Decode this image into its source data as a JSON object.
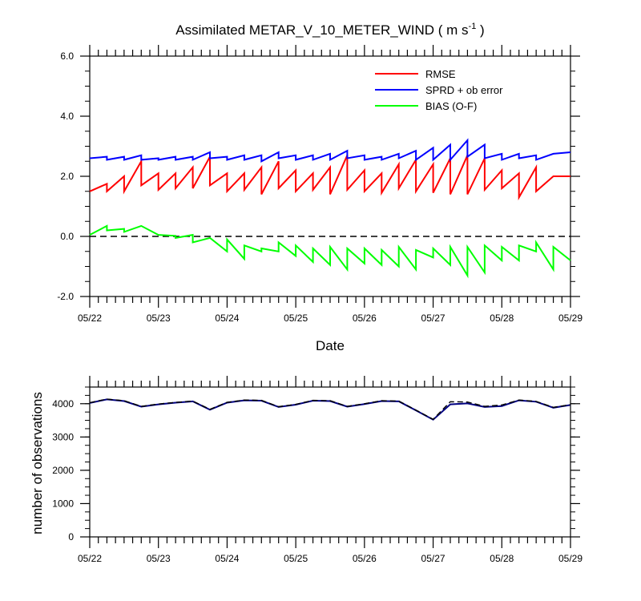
{
  "chart_data": [
    {
      "type": "line",
      "title_main": "Assimilated METAR_V_10_METER_WIND ( m s",
      "title_sup": "-1",
      "title_end": " )",
      "xlabel": "Date",
      "ylabel": "",
      "ylim": [
        -2.0,
        6.0
      ],
      "yticks": [
        "6.0",
        "4.0",
        "2.0",
        "0.0",
        "-2.0"
      ],
      "yticks_values": [
        6.0,
        4.0,
        2.0,
        0.0,
        -2.0
      ],
      "x_tick_labels": [
        "05/22",
        "05/23",
        "05/24",
        "05/25",
        "05/26",
        "05/27",
        "05/28",
        "05/29"
      ],
      "xlim_days": [
        0,
        7
      ],
      "zero_line": true,
      "legend_position": "top-right",
      "series": [
        {
          "name": "RMSE",
          "color": "#ff0000",
          "points": [
            [
              0,
              1.5
            ],
            [
              0.25,
              1.75
            ],
            [
              0.25,
              1.5
            ],
            [
              0.5,
              2.0
            ],
            [
              0.5,
              1.5
            ],
            [
              0.75,
              2.5
            ],
            [
              0.75,
              1.7
            ],
            [
              1,
              2.1
            ],
            [
              1,
              1.55
            ],
            [
              1.25,
              2.1
            ],
            [
              1.25,
              1.6
            ],
            [
              1.5,
              2.3
            ],
            [
              1.5,
              1.6
            ],
            [
              1.75,
              2.65
            ],
            [
              1.75,
              1.7
            ],
            [
              2,
              2.1
            ],
            [
              2,
              1.5
            ],
            [
              2.25,
              2.1
            ],
            [
              2.25,
              1.55
            ],
            [
              2.5,
              2.3
            ],
            [
              2.5,
              1.4
            ],
            [
              2.75,
              2.5
            ],
            [
              2.75,
              1.6
            ],
            [
              3,
              2.2
            ],
            [
              3,
              1.5
            ],
            [
              3.25,
              2.1
            ],
            [
              3.25,
              1.55
            ],
            [
              3.5,
              2.3
            ],
            [
              3.5,
              1.4
            ],
            [
              3.75,
              2.7
            ],
            [
              3.75,
              1.55
            ],
            [
              4,
              2.2
            ],
            [
              4,
              1.5
            ],
            [
              4.25,
              2.1
            ],
            [
              4.25,
              1.45
            ],
            [
              4.5,
              2.4
            ],
            [
              4.5,
              1.6
            ],
            [
              4.75,
              2.55
            ],
            [
              4.75,
              1.5
            ],
            [
              5,
              2.4
            ],
            [
              5,
              1.45
            ],
            [
              5.25,
              2.6
            ],
            [
              5.25,
              1.4
            ],
            [
              5.5,
              2.7
            ],
            [
              5.5,
              1.4
            ],
            [
              5.75,
              2.6
            ],
            [
              5.75,
              1.55
            ],
            [
              6,
              2.2
            ],
            [
              6,
              1.6
            ],
            [
              6.25,
              2.1
            ],
            [
              6.25,
              1.3
            ],
            [
              6.5,
              2.3
            ],
            [
              6.5,
              1.5
            ],
            [
              6.75,
              2.0
            ],
            [
              7,
              2.0
            ]
          ]
        },
        {
          "name": "SPRD + ob error",
          "color": "#0000ff",
          "points": [
            [
              0,
              2.6
            ],
            [
              0.25,
              2.65
            ],
            [
              0.25,
              2.55
            ],
            [
              0.5,
              2.65
            ],
            [
              0.5,
              2.55
            ],
            [
              0.75,
              2.7
            ],
            [
              0.75,
              2.55
            ],
            [
              1,
              2.6
            ],
            [
              1,
              2.55
            ],
            [
              1.25,
              2.65
            ],
            [
              1.25,
              2.55
            ],
            [
              1.5,
              2.65
            ],
            [
              1.5,
              2.55
            ],
            [
              1.75,
              2.8
            ],
            [
              1.75,
              2.6
            ],
            [
              2,
              2.65
            ],
            [
              2,
              2.55
            ],
            [
              2.25,
              2.7
            ],
            [
              2.25,
              2.55
            ],
            [
              2.5,
              2.7
            ],
            [
              2.5,
              2.5
            ],
            [
              2.75,
              2.8
            ],
            [
              2.75,
              2.6
            ],
            [
              3,
              2.7
            ],
            [
              3,
              2.55
            ],
            [
              3.25,
              2.7
            ],
            [
              3.25,
              2.55
            ],
            [
              3.5,
              2.75
            ],
            [
              3.5,
              2.55
            ],
            [
              3.75,
              2.85
            ],
            [
              3.75,
              2.6
            ],
            [
              4,
              2.7
            ],
            [
              4,
              2.55
            ],
            [
              4.25,
              2.65
            ],
            [
              4.25,
              2.55
            ],
            [
              4.5,
              2.75
            ],
            [
              4.5,
              2.6
            ],
            [
              4.75,
              2.85
            ],
            [
              4.75,
              2.55
            ],
            [
              5,
              2.95
            ],
            [
              5,
              2.55
            ],
            [
              5.25,
              3.05
            ],
            [
              5.25,
              2.55
            ],
            [
              5.5,
              3.2
            ],
            [
              5.5,
              2.65
            ],
            [
              5.75,
              3.05
            ],
            [
              5.75,
              2.6
            ],
            [
              6,
              2.75
            ],
            [
              6,
              2.55
            ],
            [
              6.25,
              2.75
            ],
            [
              6.25,
              2.6
            ],
            [
              6.5,
              2.7
            ],
            [
              6.5,
              2.55
            ],
            [
              6.75,
              2.75
            ],
            [
              7,
              2.8
            ]
          ]
        },
        {
          "name": "BIAS (O-F)",
          "color": "#00ff00",
          "points": [
            [
              0,
              0.05
            ],
            [
              0.25,
              0.35
            ],
            [
              0.25,
              0.2
            ],
            [
              0.5,
              0.25
            ],
            [
              0.5,
              0.15
            ],
            [
              0.75,
              0.35
            ],
            [
              1,
              0.05
            ],
            [
              1.25,
              0.02
            ],
            [
              1.25,
              -0.05
            ],
            [
              1.5,
              0.05
            ],
            [
              1.5,
              -0.2
            ],
            [
              1.75,
              -0.05
            ],
            [
              2,
              -0.5
            ],
            [
              2,
              -0.1
            ],
            [
              2.25,
              -0.75
            ],
            [
              2.25,
              -0.3
            ],
            [
              2.5,
              -0.5
            ],
            [
              2.5,
              -0.4
            ],
            [
              2.75,
              -0.5
            ],
            [
              2.75,
              -0.2
            ],
            [
              3,
              -0.65
            ],
            [
              3,
              -0.3
            ],
            [
              3.25,
              -0.85
            ],
            [
              3.25,
              -0.4
            ],
            [
              3.5,
              -0.95
            ],
            [
              3.5,
              -0.35
            ],
            [
              3.75,
              -1.1
            ],
            [
              3.75,
              -0.4
            ],
            [
              4,
              -0.9
            ],
            [
              4,
              -0.4
            ],
            [
              4.25,
              -0.95
            ],
            [
              4.25,
              -0.45
            ],
            [
              4.5,
              -1.0
            ],
            [
              4.5,
              -0.35
            ],
            [
              4.75,
              -1.1
            ],
            [
              4.75,
              -0.45
            ],
            [
              5,
              -0.7
            ],
            [
              5,
              -0.4
            ],
            [
              5.25,
              -0.95
            ],
            [
              5.25,
              -0.35
            ],
            [
              5.5,
              -1.3
            ],
            [
              5.5,
              -0.35
            ],
            [
              5.75,
              -1.2
            ],
            [
              5.75,
              -0.3
            ],
            [
              6,
              -0.8
            ],
            [
              6,
              -0.35
            ],
            [
              6.25,
              -0.8
            ],
            [
              6.25,
              -0.3
            ],
            [
              6.5,
              -0.5
            ],
            [
              6.5,
              -0.2
            ],
            [
              6.75,
              -1.1
            ],
            [
              6.75,
              -0.35
            ],
            [
              7,
              -0.8
            ]
          ]
        }
      ]
    },
    {
      "type": "line",
      "title": "",
      "xlabel": "",
      "ylabel": "number of observations",
      "ylim": [
        0,
        4500
      ],
      "yticks": [
        "4000",
        "3000",
        "2000",
        "1000",
        "0"
      ],
      "yticks_values": [
        4000,
        3000,
        2000,
        1000,
        0
      ],
      "x_tick_labels": [
        "05/22",
        "05/23",
        "05/24",
        "05/25",
        "05/26",
        "05/27",
        "05/28",
        "05/29"
      ],
      "xlim_days": [
        0,
        7
      ],
      "series": [
        {
          "color": "#000080",
          "dashed": false,
          "points": [
            [
              0,
              4020
            ],
            [
              0.25,
              4130
            ],
            [
              0.5,
              4080
            ],
            [
              0.75,
              3910
            ],
            [
              1,
              3980
            ],
            [
              1.25,
              4030
            ],
            [
              1.5,
              4070
            ],
            [
              1.75,
              3820
            ],
            [
              2,
              4030
            ],
            [
              2.25,
              4100
            ],
            [
              2.5,
              4090
            ],
            [
              2.75,
              3900
            ],
            [
              3,
              3970
            ],
            [
              3.25,
              4090
            ],
            [
              3.5,
              4080
            ],
            [
              3.75,
              3910
            ],
            [
              4,
              3990
            ],
            [
              4.25,
              4080
            ],
            [
              4.5,
              4070
            ],
            [
              4.75,
              3800
            ],
            [
              5,
              3520
            ],
            [
              5.25,
              3980
            ],
            [
              5.5,
              4010
            ],
            [
              5.75,
              3900
            ],
            [
              6,
              3930
            ],
            [
              6.25,
              4100
            ],
            [
              6.5,
              4060
            ],
            [
              6.75,
              3880
            ],
            [
              7,
              3960
            ]
          ]
        },
        {
          "color": "#000000",
          "dashed": true,
          "points": [
            [
              0,
              4030
            ],
            [
              0.25,
              4140
            ],
            [
              0.5,
              4090
            ],
            [
              0.75,
              3920
            ],
            [
              1,
              3990
            ],
            [
              1.25,
              4040
            ],
            [
              1.5,
              4080
            ],
            [
              1.75,
              3830
            ],
            [
              2,
              4040
            ],
            [
              2.25,
              4110
            ],
            [
              2.5,
              4100
            ],
            [
              2.75,
              3910
            ],
            [
              3,
              3980
            ],
            [
              3.25,
              4100
            ],
            [
              3.5,
              4090
            ],
            [
              3.75,
              3920
            ],
            [
              4,
              4000
            ],
            [
              4.25,
              4090
            ],
            [
              4.5,
              4080
            ],
            [
              4.75,
              3810
            ],
            [
              5,
              3530
            ],
            [
              5.25,
              4060
            ],
            [
              5.5,
              4050
            ],
            [
              5.75,
              3920
            ],
            [
              6,
              3960
            ],
            [
              6.25,
              4110
            ],
            [
              6.5,
              4070
            ],
            [
              6.75,
              3890
            ],
            [
              7,
              3970
            ]
          ]
        }
      ]
    }
  ]
}
